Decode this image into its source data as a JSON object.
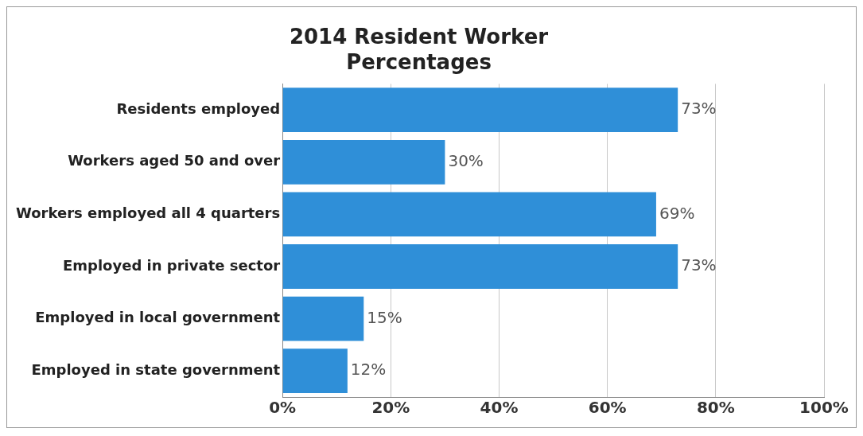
{
  "chart_data": {
    "type": "bar",
    "orientation": "horizontal",
    "title": [
      "2014 Resident Worker",
      "Percentages"
    ],
    "categories": [
      "Residents employed",
      "Workers aged 50 and over",
      "Workers employed all 4 quarters",
      "Employed in private sector",
      "Employed in local government",
      "Employed in state government"
    ],
    "values": [
      73,
      30,
      69,
      73,
      15,
      12
    ],
    "value_labels": [
      "73%",
      "30%",
      "69%",
      "73%",
      "15%",
      "12%"
    ],
    "color": "#2f8fd8",
    "xlim": [
      0,
      100
    ],
    "xticks": [
      {
        "value": 0,
        "label": "0%"
      },
      {
        "value": 20,
        "label": "20%"
      },
      {
        "value": 40,
        "label": "40%"
      },
      {
        "value": 60,
        "label": "60%"
      },
      {
        "value": 80,
        "label": "80%"
      },
      {
        "value": 100,
        "label": "100%"
      }
    ],
    "grid": "x"
  }
}
